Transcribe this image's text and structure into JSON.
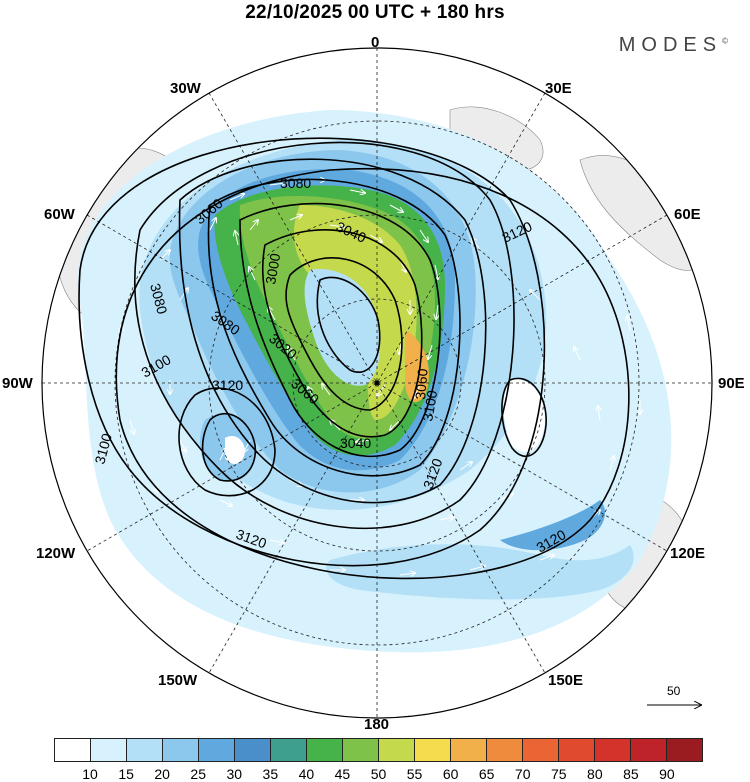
{
  "title": "22/10/2025  00 UTC  + 180 hrs",
  "brand": "MODES",
  "brand_mark": "©",
  "longitude_labels": {
    "top": "0",
    "top_right": "30E",
    "right_upper": "60E",
    "right": "90E",
    "right_lower": "120E",
    "bottom_right": "150E",
    "bottom": "180",
    "bottom_left": "150W",
    "left_lower": "120W",
    "left": "90W",
    "left_upper": "60W",
    "top_left": "30W"
  },
  "contour_labels": [
    "3080",
    "3060",
    "3040",
    "3000",
    "3080",
    "3080",
    "3020",
    "3060",
    "3100",
    "3120",
    "3100",
    "3060",
    "3040",
    "3120",
    "3100",
    "3120",
    "3120",
    "3120"
  ],
  "wind_vector_key": {
    "label": "50",
    "icon": "arrow-right-icon"
  },
  "colorbar": {
    "colors": [
      "#ffffff",
      "#d8f2fd",
      "#b3e0f7",
      "#8cc8ee",
      "#5fa9df",
      "#4a8fca",
      "#3f9f8e",
      "#45b24a",
      "#7ec24a",
      "#c5d94d",
      "#f4dc4e",
      "#f2b04a",
      "#ef8b3c",
      "#ea6533",
      "#e04b30",
      "#d3332b",
      "#bd2329",
      "#9a1c20"
    ],
    "labels": [
      "10",
      "15",
      "20",
      "25",
      "30",
      "35",
      "40",
      "45",
      "50",
      "55",
      "60",
      "65",
      "70",
      "75",
      "80",
      "85",
      "90"
    ]
  }
}
